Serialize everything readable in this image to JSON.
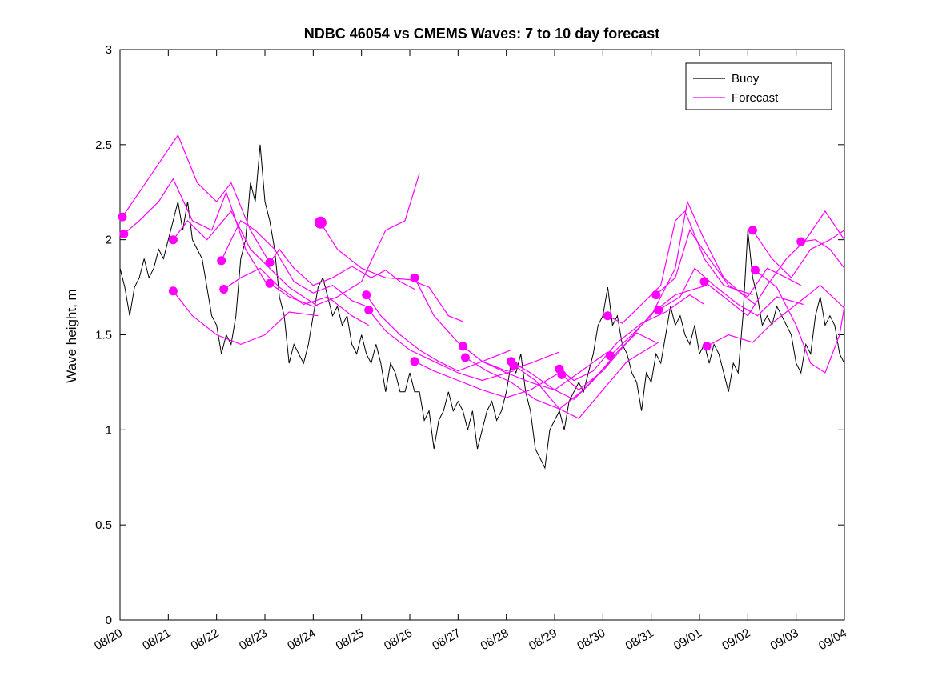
{
  "figure": {
    "background": "#ffffff"
  },
  "chart_data": {
    "type": "line",
    "title": "NDBC 46054 vs CMEMS Waves: 7 to 10 day forecast",
    "xlabel": "",
    "ylabel": "Wave height, m",
    "xlim": [
      0,
      15
    ],
    "ylim": [
      0,
      3
    ],
    "x_unit": "days since 08/20",
    "x_tick_labels": [
      "08/20",
      "08/21",
      "08/22",
      "08/23",
      "08/24",
      "08/25",
      "08/26",
      "08/27",
      "08/28",
      "08/29",
      "08/30",
      "08/31",
      "09/01",
      "09/02",
      "09/03",
      "09/04"
    ],
    "y_ticks": [
      0,
      0.5,
      1,
      1.5,
      2,
      2.5,
      3
    ],
    "y_tick_labels": [
      "0",
      "0.5",
      "1",
      "1.5",
      "2",
      "2.5",
      "3"
    ],
    "grid": false,
    "legend_position": "top-right",
    "legend": [
      {
        "label": "Buoy",
        "color": "#000000"
      },
      {
        "label": "Forecast",
        "color": "#ff00ff"
      }
    ],
    "colors": {
      "buoy": "#000000",
      "forecast": "#ff00ff"
    },
    "buoy": {
      "x0": 0,
      "dx": 0.1,
      "values": [
        1.85,
        1.75,
        1.6,
        1.75,
        1.8,
        1.9,
        1.8,
        1.85,
        1.95,
        1.9,
        2.0,
        2.1,
        2.2,
        2.05,
        2.2,
        2.0,
        1.95,
        1.9,
        1.75,
        1.6,
        1.55,
        1.4,
        1.5,
        1.45,
        1.6,
        1.9,
        2.0,
        2.3,
        2.2,
        2.5,
        2.2,
        2.1,
        1.95,
        1.7,
        1.6,
        1.35,
        1.45,
        1.4,
        1.35,
        1.45,
        1.6,
        1.75,
        1.8,
        1.7,
        1.6,
        1.65,
        1.55,
        1.6,
        1.45,
        1.4,
        1.5,
        1.4,
        1.35,
        1.45,
        1.35,
        1.2,
        1.35,
        1.3,
        1.2,
        1.2,
        1.3,
        1.2,
        1.2,
        1.05,
        1.1,
        0.9,
        1.05,
        1.1,
        1.2,
        1.1,
        1.15,
        1.1,
        1.0,
        1.1,
        0.9,
        1.0,
        1.1,
        1.15,
        1.05,
        1.1,
        1.2,
        1.35,
        1.3,
        1.4,
        1.2,
        1.1,
        0.9,
        0.85,
        0.8,
        1.0,
        1.05,
        1.1,
        1.0,
        1.15,
        1.2,
        1.25,
        1.2,
        1.3,
        1.4,
        1.55,
        1.6,
        1.75,
        1.55,
        1.6,
        1.45,
        1.4,
        1.3,
        1.25,
        1.1,
        1.3,
        1.25,
        1.4,
        1.35,
        1.5,
        1.65,
        1.55,
        1.6,
        1.5,
        1.45,
        1.55,
        1.4,
        1.45,
        1.35,
        1.45,
        1.4,
        1.3,
        1.2,
        1.35,
        1.3,
        1.6,
        2.05,
        1.8,
        1.7,
        1.55,
        1.6,
        1.55,
        1.65,
        1.6,
        1.55,
        1.5,
        1.35,
        1.3,
        1.45,
        1.4,
        1.6,
        1.7,
        1.55,
        1.6,
        1.55,
        1.4,
        1.35
      ]
    },
    "forecasts": [
      {
        "marker": 5.5,
        "x": [
          0.05,
          0.4,
          0.8,
          1.2,
          1.6,
          2.0,
          2.3,
          2.7,
          3.05
        ],
        "y": [
          2.12,
          2.25,
          2.4,
          2.55,
          2.3,
          2.2,
          2.3,
          2.05,
          1.9
        ]
      },
      {
        "marker": 5.5,
        "x": [
          0.08,
          0.4,
          0.8,
          1.1,
          1.5,
          1.9,
          2.2,
          2.6,
          3.08
        ],
        "y": [
          2.03,
          2.1,
          2.2,
          2.32,
          2.1,
          2.05,
          2.25,
          1.95,
          1.75
        ]
      },
      {
        "marker": 5.5,
        "x": [
          1.1,
          1.4,
          1.8,
          2.3,
          2.7,
          3.1,
          3.5,
          3.8,
          4.1
        ],
        "y": [
          2.0,
          2.1,
          2.0,
          2.15,
          1.95,
          1.85,
          1.75,
          1.7,
          1.65
        ]
      },
      {
        "marker": 5.5,
        "x": [
          1.1,
          1.5,
          2.0,
          2.5,
          3.0,
          3.5,
          4.1
        ],
        "y": [
          1.73,
          1.6,
          1.5,
          1.45,
          1.5,
          1.62,
          1.6
        ]
      },
      {
        "marker": 5.5,
        "x": [
          2.1,
          2.3,
          2.5,
          2.8,
          3.2,
          3.6,
          4.0,
          4.4,
          4.8,
          5.1
        ],
        "y": [
          1.89,
          2.0,
          2.1,
          2.05,
          1.95,
          1.78,
          1.72,
          1.76,
          1.68,
          1.65
        ]
      },
      {
        "marker": 5.5,
        "x": [
          2.15,
          2.5,
          2.9,
          3.3,
          3.8,
          4.3,
          4.8,
          5.15
        ],
        "y": [
          1.74,
          1.8,
          1.85,
          1.75,
          1.66,
          1.7,
          1.6,
          1.55
        ]
      },
      {
        "marker": 5.5,
        "x": [
          3.1,
          3.3,
          3.6,
          4.0,
          4.4,
          4.8,
          5.2,
          5.5,
          5.8,
          6.1
        ],
        "y": [
          1.88,
          1.95,
          1.85,
          1.76,
          1.8,
          1.86,
          1.8,
          1.84,
          1.78,
          1.74
        ]
      },
      {
        "marker": 5.5,
        "x": [
          3.1,
          3.5,
          4.0,
          4.5,
          5.0,
          5.5,
          5.9,
          6.2
        ],
        "y": [
          1.77,
          1.7,
          1.65,
          1.7,
          1.78,
          2.05,
          2.1,
          2.35
        ]
      },
      {
        "marker": 7.5,
        "x": [
          4.15,
          4.5,
          5.0,
          5.5,
          6.0,
          6.4,
          6.8,
          7.1
        ],
        "y": [
          2.09,
          1.95,
          1.85,
          1.8,
          1.79,
          1.75,
          1.6,
          1.57
        ]
      },
      {
        "marker": 5.5,
        "x": [
          5.1,
          5.4,
          5.8,
          6.2,
          6.6,
          7.0,
          7.5,
          8.1
        ],
        "y": [
          1.71,
          1.6,
          1.5,
          1.42,
          1.36,
          1.31,
          1.36,
          1.42
        ]
      },
      {
        "marker": 5.5,
        "x": [
          5.15,
          5.5,
          6.0,
          6.5,
          7.0,
          7.5,
          8.15
        ],
        "y": [
          1.63,
          1.52,
          1.42,
          1.36,
          1.3,
          1.26,
          1.31
        ]
      },
      {
        "marker": 5.5,
        "x": [
          6.1,
          6.5,
          7.0,
          7.5,
          8.0,
          8.5,
          9.1
        ],
        "y": [
          1.8,
          1.6,
          1.46,
          1.36,
          1.31,
          1.35,
          1.41
        ]
      },
      {
        "marker": 5.5,
        "x": [
          6.1,
          6.5,
          7.0,
          7.5,
          8.0,
          8.5,
          9.1
        ],
        "y": [
          1.36,
          1.31,
          1.26,
          1.21,
          1.17,
          1.21,
          1.3
        ]
      },
      {
        "marker": 5.5,
        "x": [
          7.1,
          7.5,
          8.0,
          8.5,
          9.0,
          9.5,
          10.1
        ],
        "y": [
          1.44,
          1.36,
          1.3,
          1.25,
          1.21,
          1.3,
          1.41
        ]
      },
      {
        "marker": 5.5,
        "x": [
          7.15,
          7.6,
          8.1,
          8.6,
          9.1,
          9.6,
          10.15
        ],
        "y": [
          1.38,
          1.31,
          1.25,
          1.16,
          1.11,
          1.21,
          1.36
        ]
      },
      {
        "marker": 5.5,
        "x": [
          8.1,
          8.5,
          9.0,
          9.4,
          9.8,
          10.3,
          10.7,
          11.1
        ],
        "y": [
          1.36,
          1.3,
          1.21,
          1.16,
          1.26,
          1.41,
          1.51,
          1.46
        ]
      },
      {
        "marker": 5.5,
        "x": [
          8.15,
          8.6,
          9.1,
          9.5,
          10.0,
          10.5,
          11.15
        ],
        "y": [
          1.34,
          1.26,
          1.11,
          1.06,
          1.21,
          1.36,
          1.46
        ]
      },
      {
        "marker": 5.5,
        "x": [
          9.1,
          9.4,
          9.8,
          10.3,
          10.8,
          11.3,
          11.8,
          12.1
        ],
        "y": [
          1.32,
          1.26,
          1.31,
          1.46,
          1.56,
          1.62,
          1.71,
          1.66
        ]
      },
      {
        "marker": 5.5,
        "x": [
          9.15,
          9.5,
          10.0,
          10.5,
          11.0,
          11.5,
          12.15
        ],
        "y": [
          1.29,
          1.21,
          1.31,
          1.46,
          1.61,
          1.71,
          1.76
        ]
      },
      {
        "marker": 5.5,
        "x": [
          10.1,
          10.4,
          10.8,
          11.2,
          11.5,
          11.7,
          12.1,
          12.5,
          13.1
        ],
        "y": [
          1.6,
          1.56,
          1.66,
          1.76,
          2.1,
          2.15,
          1.9,
          1.76,
          1.71
        ]
      },
      {
        "marker": 5.5,
        "x": [
          10.15,
          10.6,
          11.0,
          11.5,
          11.75,
          12.1,
          12.5,
          12.9,
          13.15
        ],
        "y": [
          1.39,
          1.5,
          1.6,
          1.85,
          2.2,
          2.0,
          1.8,
          1.71,
          1.66
        ]
      },
      {
        "marker": 5.5,
        "x": [
          11.1,
          11.5,
          11.8,
          12.2,
          12.6,
          13.0,
          13.4,
          13.8,
          14.1
        ],
        "y": [
          1.71,
          1.8,
          2.05,
          1.9,
          1.76,
          1.7,
          1.85,
          1.8,
          1.76
        ]
      },
      {
        "marker": 5.5,
        "x": [
          11.15,
          11.6,
          11.9,
          12.3,
          12.8,
          13.2,
          13.6,
          14.15
        ],
        "y": [
          1.63,
          1.7,
          1.85,
          1.76,
          1.66,
          1.6,
          1.7,
          1.66
        ]
      },
      {
        "marker": 5.5,
        "x": [
          12.1,
          12.5,
          13.0,
          13.4,
          13.8,
          14.2,
          14.6,
          15.0
        ],
        "y": [
          1.78,
          1.7,
          1.6,
          1.76,
          1.9,
          2.0,
          2.15,
          2.0
        ]
      },
      {
        "marker": 5.5,
        "x": [
          12.15,
          12.6,
          13.1,
          13.5,
          14.0,
          14.5,
          15.0
        ],
        "y": [
          1.44,
          1.5,
          1.46,
          1.56,
          1.66,
          1.76,
          1.64
        ]
      },
      {
        "marker": 5.5,
        "x": [
          13.1,
          13.5,
          13.9,
          14.3,
          14.7,
          15.0
        ],
        "y": [
          2.05,
          1.9,
          1.8,
          1.95,
          2.0,
          2.05
        ]
      },
      {
        "marker": 5.5,
        "x": [
          13.15,
          13.6,
          14.0,
          14.3,
          14.6,
          14.9,
          15.0
        ],
        "y": [
          1.84,
          1.75,
          1.55,
          1.35,
          1.3,
          1.5,
          1.65
        ]
      },
      {
        "marker": 5.5,
        "x": [
          14.1,
          14.4,
          14.7,
          15.0
        ],
        "y": [
          1.99,
          2.0,
          1.95,
          1.85
        ]
      }
    ]
  }
}
